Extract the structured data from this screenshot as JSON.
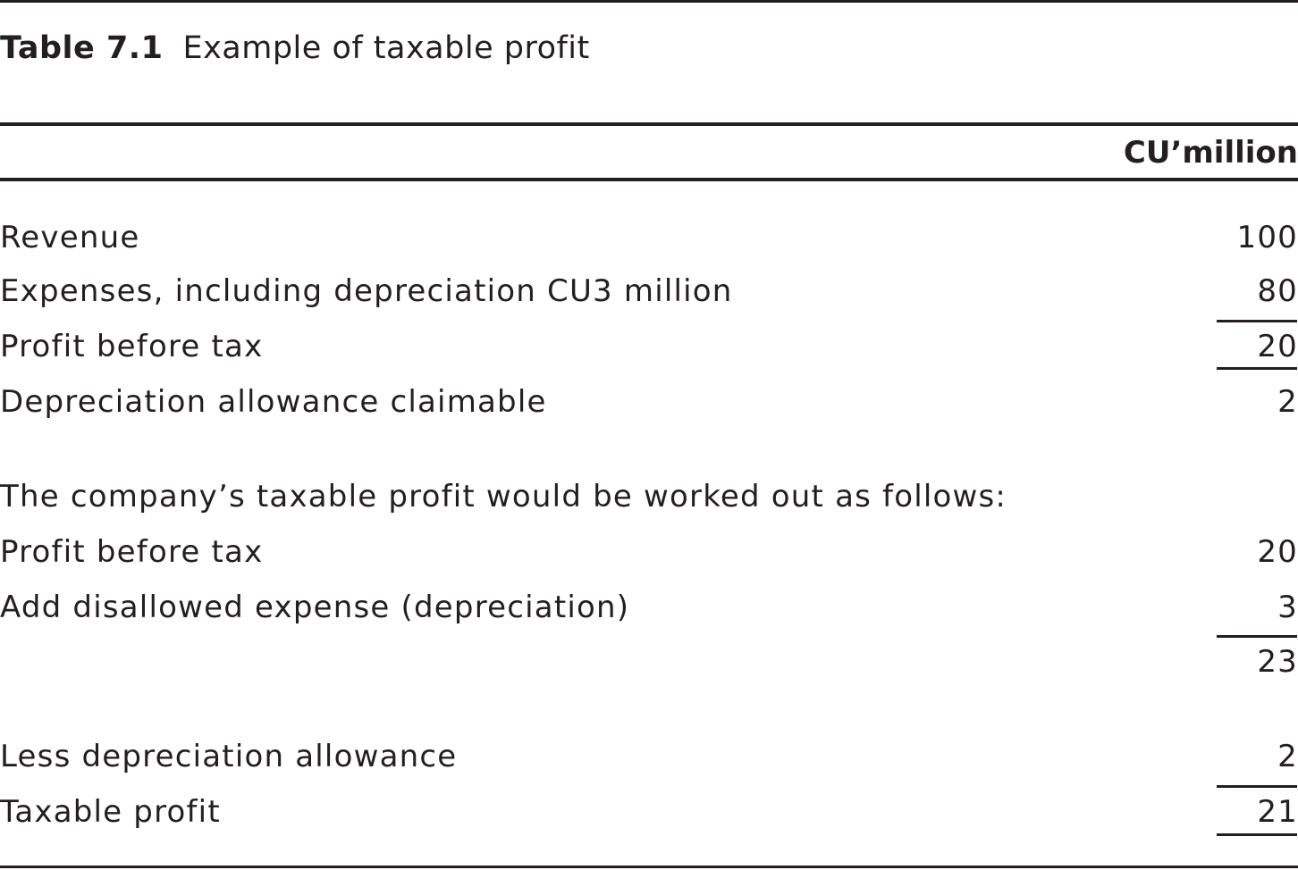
{
  "caption": {
    "label": "Table 7.1",
    "title": "Example of taxable profit"
  },
  "column_header": "CU’million",
  "rows": [
    {
      "label": "Revenue",
      "amount": "100"
    },
    {
      "label": "Expenses, including depreciation CU3 million",
      "amount": "80"
    },
    {
      "label": "Profit before tax",
      "amount": "20"
    },
    {
      "label": "Depreciation allowance claimable",
      "amount": "2"
    },
    {
      "label": "The company’s taxable profit would be worked out as follows:",
      "amount": ""
    },
    {
      "label": "Profit before tax",
      "amount": "20"
    },
    {
      "label": "Add disallowed expense (depreciation)",
      "amount": "3"
    },
    {
      "label": "",
      "amount": "23"
    },
    {
      "label": "Less depreciation allowance",
      "amount": "2"
    },
    {
      "label": "Taxable profit",
      "amount": "21"
    }
  ]
}
